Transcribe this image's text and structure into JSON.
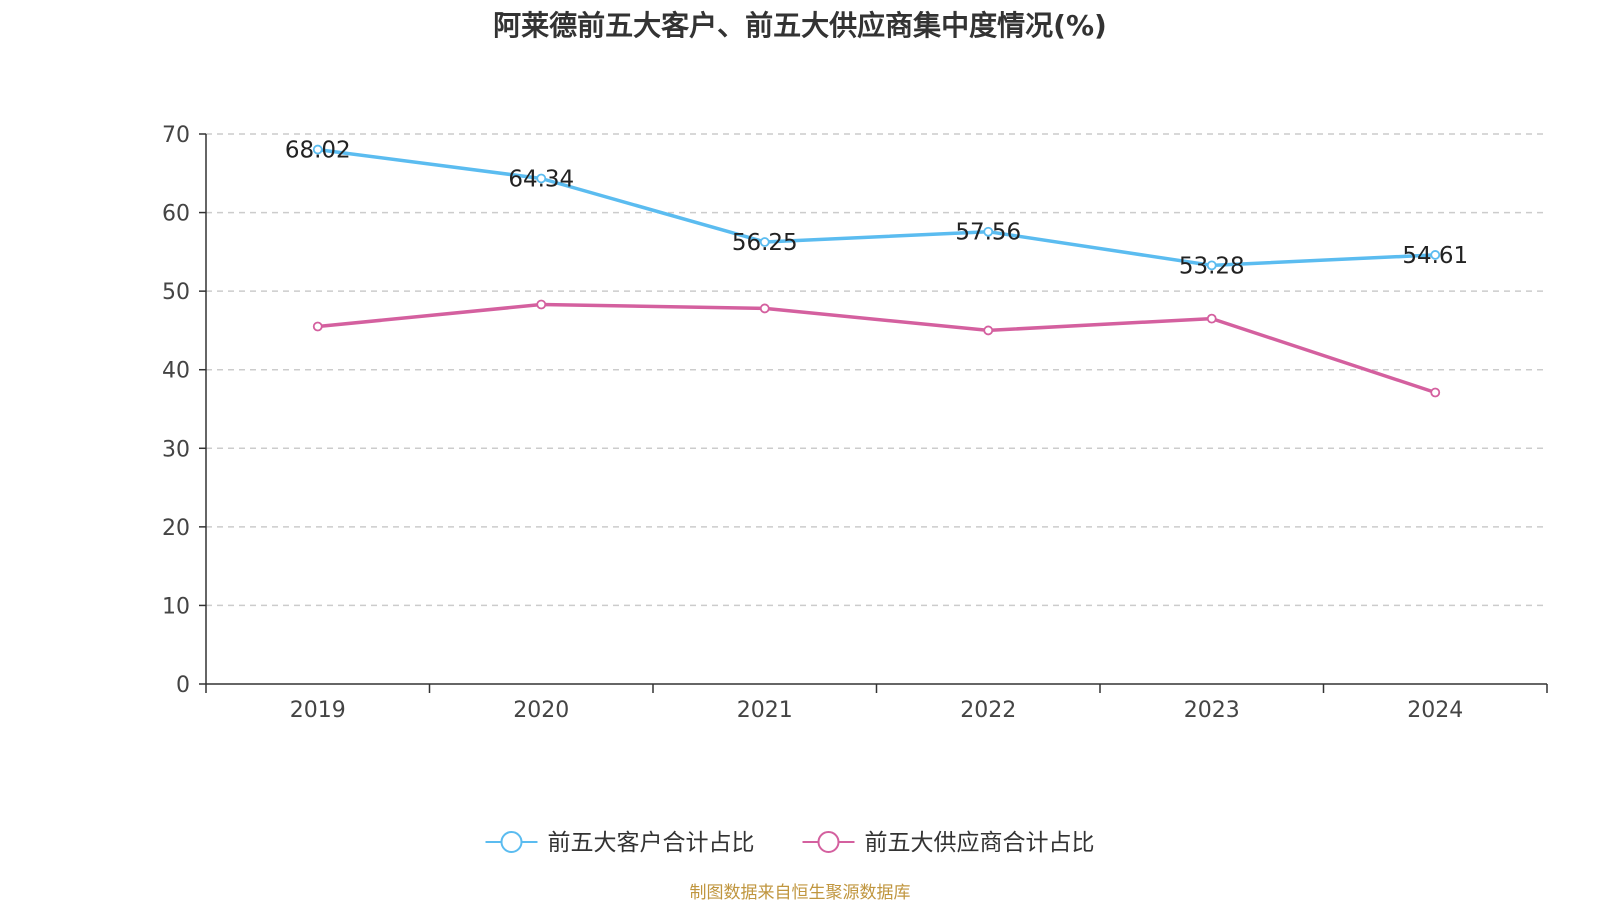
{
  "chart_data": {
    "type": "line",
    "title": "阿莱德前五大客户、前五大供应商集中度情况(%)",
    "xlabel": "",
    "ylabel": "",
    "categories": [
      "2019",
      "2020",
      "2021",
      "2022",
      "2023",
      "2024"
    ],
    "ylim": [
      0,
      70
    ],
    "yticks": [
      0,
      10,
      20,
      30,
      40,
      50,
      60,
      70
    ],
    "grid": true,
    "legend_position": "bottom-center",
    "series": [
      {
        "name": "前五大客户合计占比",
        "color": "#5bbcf0",
        "values": [
          68.02,
          64.34,
          56.25,
          57.56,
          53.28,
          54.61
        ],
        "labels": [
          "68.02",
          "64.34",
          "56.25",
          "57.56",
          "53.28",
          "54.61"
        ]
      },
      {
        "name": "前五大供应商合计占比",
        "color": "#d4609f",
        "values": [
          45.5,
          48.3,
          47.8,
          45.0,
          46.5,
          37.1
        ],
        "labels": []
      }
    ]
  },
  "source_note": "制图数据来自恒生聚源数据库"
}
